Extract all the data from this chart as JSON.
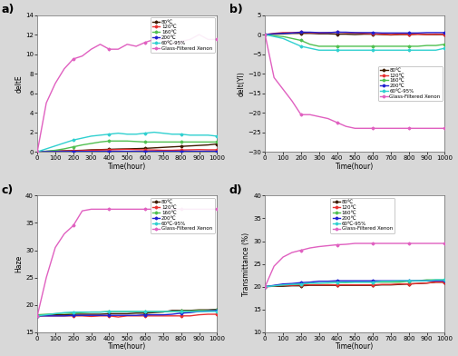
{
  "legend_labels": [
    "80℃",
    "120℃",
    "160℃",
    "200℃",
    "60℃-95%",
    "Glass-Filtered Xenon"
  ],
  "colors": [
    "#3d1a00",
    "#e83030",
    "#50c050",
    "#2020d0",
    "#30d0d0",
    "#e060c0"
  ],
  "markers": [
    "D",
    "D",
    "D",
    "D",
    "D",
    "D"
  ],
  "time_common": [
    0,
    50,
    100,
    150,
    200,
    250,
    300,
    350,
    400,
    450,
    500,
    550,
    600,
    650,
    700,
    750,
    800,
    850,
    900,
    950,
    1000
  ],
  "dE_80": [
    0.0,
    0.05,
    0.08,
    0.1,
    0.12,
    0.15,
    0.2,
    0.22,
    0.25,
    0.28,
    0.3,
    0.32,
    0.35,
    0.4,
    0.45,
    0.5,
    0.55,
    0.6,
    0.65,
    0.7,
    0.8
  ],
  "dE_120": [
    0.0,
    0.03,
    0.05,
    0.08,
    0.1,
    0.12,
    0.15,
    0.18,
    0.2,
    0.22,
    0.25,
    0.22,
    0.2,
    0.18,
    0.15,
    0.15,
    0.18,
    0.2,
    0.22,
    0.2,
    0.2
  ],
  "dE_160": [
    0.0,
    0.05,
    0.15,
    0.3,
    0.5,
    0.7,
    0.85,
    1.0,
    1.1,
    1.1,
    1.1,
    1.05,
    1.0,
    1.0,
    1.0,
    1.0,
    1.0,
    1.0,
    1.0,
    1.0,
    1.0
  ],
  "dE_200": [
    0.0,
    0.02,
    0.03,
    0.03,
    0.04,
    0.04,
    0.04,
    0.04,
    0.05,
    0.05,
    0.05,
    0.05,
    0.05,
    0.05,
    0.05,
    0.05,
    0.05,
    0.05,
    0.05,
    0.05,
    0.05
  ],
  "dE_60_95": [
    0.0,
    0.3,
    0.6,
    0.9,
    1.2,
    1.4,
    1.6,
    1.7,
    1.8,
    1.9,
    1.8,
    1.8,
    1.9,
    2.0,
    1.9,
    1.8,
    1.8,
    1.7,
    1.7,
    1.7,
    1.6
  ],
  "dE_xenon": [
    0.0,
    5.0,
    7.0,
    8.5,
    9.5,
    9.8,
    10.5,
    11.0,
    10.5,
    10.5,
    11.0,
    10.8,
    11.2,
    11.5,
    11.5,
    11.0,
    11.3,
    11.5,
    12.0,
    11.5,
    11.5
  ],
  "dYI_80": [
    0.0,
    0.1,
    0.2,
    0.3,
    0.3,
    0.3,
    0.2,
    0.2,
    0.1,
    0.1,
    0.0,
    0.1,
    0.1,
    0.0,
    -0.1,
    0.0,
    0.0,
    0.1,
    0.0,
    0.0,
    0.0
  ],
  "dYI_120": [
    0.0,
    0.3,
    0.5,
    0.5,
    0.6,
    0.5,
    0.4,
    0.5,
    0.6,
    0.5,
    0.4,
    0.3,
    0.2,
    0.1,
    0.0,
    0.1,
    0.0,
    0.1,
    0.0,
    0.1,
    0.0
  ],
  "dYI_160": [
    0.0,
    -0.3,
    -0.5,
    -1.0,
    -1.5,
    -2.5,
    -3.0,
    -3.0,
    -3.0,
    -3.0,
    -3.0,
    -3.0,
    -3.0,
    -3.0,
    -3.0,
    -3.0,
    -3.0,
    -3.0,
    -2.8,
    -2.8,
    -2.5
  ],
  "dYI_200": [
    0.0,
    0.2,
    0.3,
    0.4,
    0.6,
    0.6,
    0.5,
    0.5,
    0.6,
    0.6,
    0.5,
    0.5,
    0.5,
    0.4,
    0.4,
    0.4,
    0.4,
    0.4,
    0.5,
    0.5,
    0.5
  ],
  "dYI_60_95": [
    0.0,
    -0.5,
    -1.0,
    -2.0,
    -3.0,
    -3.5,
    -4.0,
    -4.0,
    -4.0,
    -4.0,
    -4.0,
    -4.0,
    -4.0,
    -4.0,
    -4.0,
    -4.0,
    -4.0,
    -4.0,
    -4.0,
    -4.0,
    -3.5
  ],
  "dYI_xenon": [
    0.0,
    -11.0,
    -14.0,
    -17.0,
    -20.5,
    -20.5,
    -21.0,
    -21.5,
    -22.5,
    -23.5,
    -24.0,
    -24.0,
    -24.0,
    -24.0,
    -24.0,
    -24.0,
    -24.0,
    -24.0,
    -24.0,
    -24.0,
    -24.0
  ],
  "haze_80": [
    18.0,
    18.1,
    18.2,
    18.2,
    18.3,
    18.3,
    18.3,
    18.3,
    18.4,
    18.4,
    18.4,
    18.5,
    18.5,
    18.6,
    18.7,
    19.0,
    19.0,
    19.0,
    19.1,
    19.1,
    19.2
  ],
  "haze_120": [
    18.0,
    18.0,
    18.0,
    18.0,
    18.0,
    18.0,
    17.9,
    18.0,
    18.0,
    17.8,
    18.0,
    18.0,
    18.0,
    18.0,
    18.0,
    18.0,
    18.0,
    18.0,
    18.2,
    18.3,
    18.3
  ],
  "haze_160": [
    18.2,
    18.3,
    18.4,
    18.5,
    18.5,
    18.6,
    18.7,
    18.7,
    18.8,
    18.8,
    18.8,
    18.8,
    18.8,
    18.8,
    18.8,
    18.8,
    18.9,
    18.9,
    19.0,
    19.0,
    19.1
  ],
  "haze_200": [
    18.0,
    18.0,
    18.0,
    18.0,
    18.1,
    18.1,
    18.1,
    18.1,
    18.1,
    18.1,
    18.1,
    18.1,
    18.2,
    18.2,
    18.2,
    18.3,
    18.5,
    18.6,
    18.8,
    18.9,
    19.0
  ],
  "haze_60_95": [
    18.0,
    18.2,
    18.4,
    18.6,
    18.7,
    18.7,
    18.7,
    18.7,
    18.8,
    18.8,
    18.8,
    18.8,
    18.8,
    18.8,
    18.8,
    18.8,
    18.8,
    18.8,
    18.8,
    18.8,
    18.8
  ],
  "haze_xenon": [
    18.0,
    25.0,
    30.5,
    33.0,
    34.5,
    37.2,
    37.5,
    37.5,
    37.5,
    37.5,
    37.5,
    37.5,
    37.5,
    37.5,
    37.5,
    37.5,
    37.5,
    37.5,
    37.5,
    37.5,
    37.5
  ],
  "trans_80": [
    20.0,
    20.1,
    20.1,
    20.2,
    20.2,
    20.3,
    20.3,
    20.3,
    20.3,
    20.3,
    20.3,
    20.3,
    20.3,
    20.4,
    20.4,
    20.5,
    20.6,
    20.7,
    20.8,
    21.0,
    21.0
  ],
  "trans_120": [
    20.0,
    20.2,
    20.3,
    20.3,
    20.4,
    20.4,
    20.4,
    20.4,
    20.4,
    20.4,
    20.4,
    20.4,
    20.4,
    20.5,
    20.5,
    20.6,
    20.6,
    20.7,
    20.8,
    21.0,
    21.0
  ],
  "trans_160": [
    20.0,
    20.2,
    20.4,
    20.5,
    20.6,
    20.8,
    20.8,
    20.8,
    20.9,
    20.9,
    21.0,
    21.0,
    21.0,
    21.0,
    21.0,
    21.0,
    21.2,
    21.3,
    21.5,
    21.5,
    21.5
  ],
  "trans_200": [
    20.0,
    20.3,
    20.6,
    20.7,
    20.9,
    21.0,
    21.2,
    21.2,
    21.3,
    21.3,
    21.3,
    21.3,
    21.3,
    21.3,
    21.3,
    21.3,
    21.3,
    21.3,
    21.3,
    21.3,
    21.3
  ],
  "trans_60_95": [
    20.0,
    20.2,
    20.4,
    20.5,
    20.6,
    20.8,
    20.8,
    20.9,
    20.9,
    21.0,
    21.0,
    21.0,
    21.0,
    21.2,
    21.2,
    21.3,
    21.3,
    21.3,
    21.3,
    21.5,
    21.5
  ],
  "trans_xenon": [
    20.0,
    24.5,
    26.5,
    27.5,
    28.0,
    28.5,
    28.8,
    29.0,
    29.2,
    29.3,
    29.5,
    29.5,
    29.5,
    29.5,
    29.5,
    29.5,
    29.5,
    29.5,
    29.5,
    29.5,
    29.5
  ],
  "xlabel": "Time(hour)",
  "ylabel_a": "deltE",
  "ylabel_b": "delt(YI)",
  "ylabel_c": "Haze",
  "ylabel_d": "Transmittance (%)",
  "xlim": [
    0,
    1000
  ],
  "ylim_a": [
    0,
    14
  ],
  "ylim_b": [
    -30,
    5
  ],
  "ylim_c": [
    15,
    40
  ],
  "ylim_d": [
    10,
    40
  ],
  "yticks_a": [
    0,
    2,
    4,
    6,
    8,
    10,
    12,
    14
  ],
  "yticks_b": [
    -30,
    -25,
    -20,
    -15,
    -10,
    -5,
    0,
    5
  ],
  "yticks_c": [
    15,
    20,
    25,
    30,
    35,
    40
  ],
  "yticks_d": [
    10,
    15,
    20,
    25,
    30,
    35,
    40
  ],
  "xticks": [
    0,
    100,
    200,
    300,
    400,
    500,
    600,
    700,
    800,
    900,
    1000
  ],
  "panel_labels": [
    "a)",
    "b)",
    "c)",
    "d)"
  ]
}
